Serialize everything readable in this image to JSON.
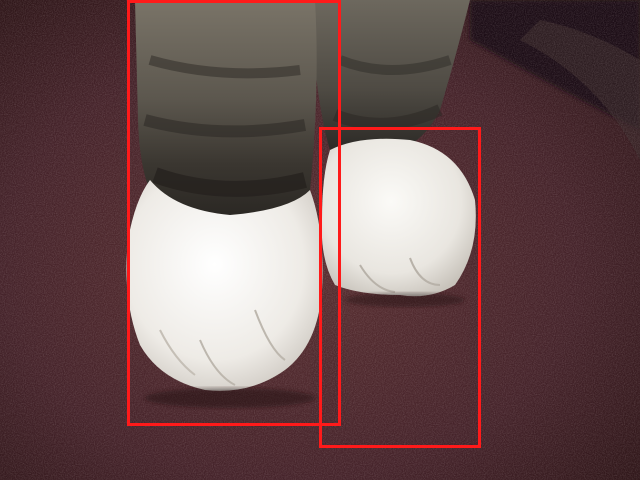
{
  "scene": {
    "subject": "cat-paws",
    "colors": {
      "carpet": "#4a2628",
      "carpet_dark": "#2e1719",
      "fur_tabby": "#6b665c",
      "fur_tabby_dark": "#2f2c27",
      "paw_white": "#f2f0ec",
      "box_stroke": "#ff1a1a"
    }
  },
  "annotations": [
    {
      "id": "box-left",
      "label_visible": false
    },
    {
      "id": "box-right",
      "label_visible": false
    }
  ]
}
